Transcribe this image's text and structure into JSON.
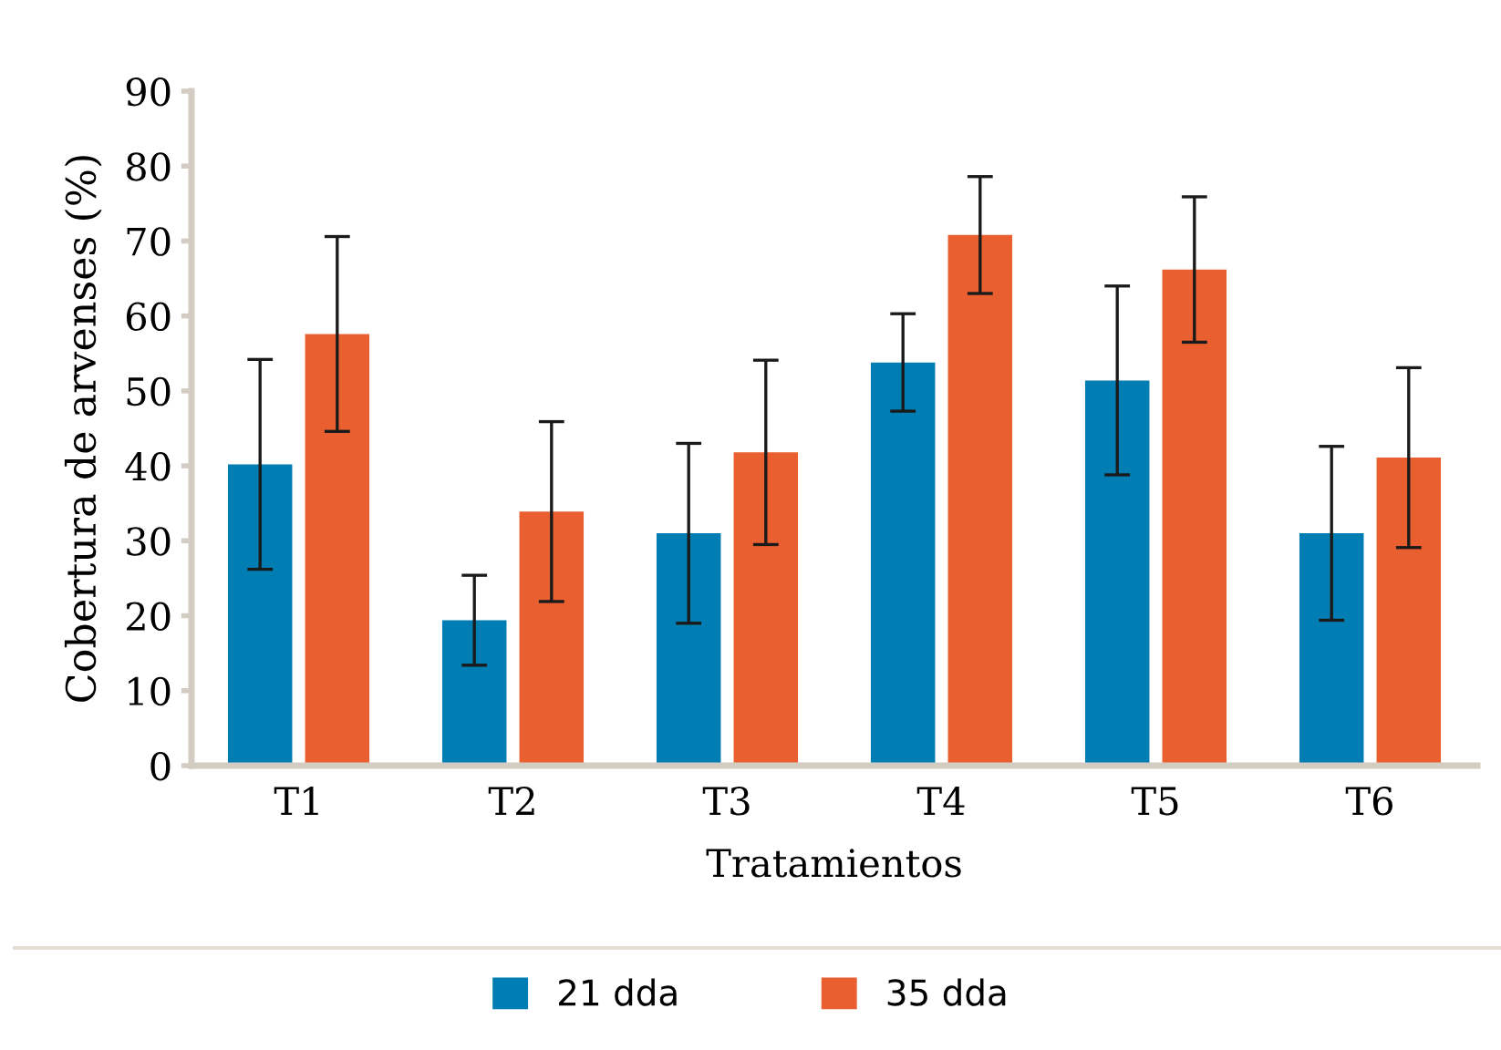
{
  "chart_data": {
    "type": "bar",
    "xlabel": "Tratamientos",
    "ylabel": "Cobertura de arvenses (%)",
    "categories": [
      "T1",
      "T2",
      "T3",
      "T4",
      "T5",
      "T6"
    ],
    "series": [
      {
        "name": "21 dda",
        "color": "#007db3",
        "values": [
          40.2,
          19.4,
          31.0,
          53.8,
          51.4,
          31.0
        ],
        "errors": [
          14,
          6,
          12,
          6.5,
          12.6,
          11.6
        ]
      },
      {
        "name": "35 dda",
        "color": "#e95f30",
        "values": [
          57.6,
          33.9,
          41.8,
          70.8,
          66.2,
          41.1
        ],
        "errors": [
          13,
          12,
          12.3,
          7.8,
          9.7,
          12
        ]
      }
    ],
    "ylim": [
      0,
      90
    ],
    "yticks": [
      0,
      10,
      20,
      30,
      40,
      50,
      60,
      70,
      80,
      90
    ],
    "grid": false,
    "legend": "bottom"
  }
}
